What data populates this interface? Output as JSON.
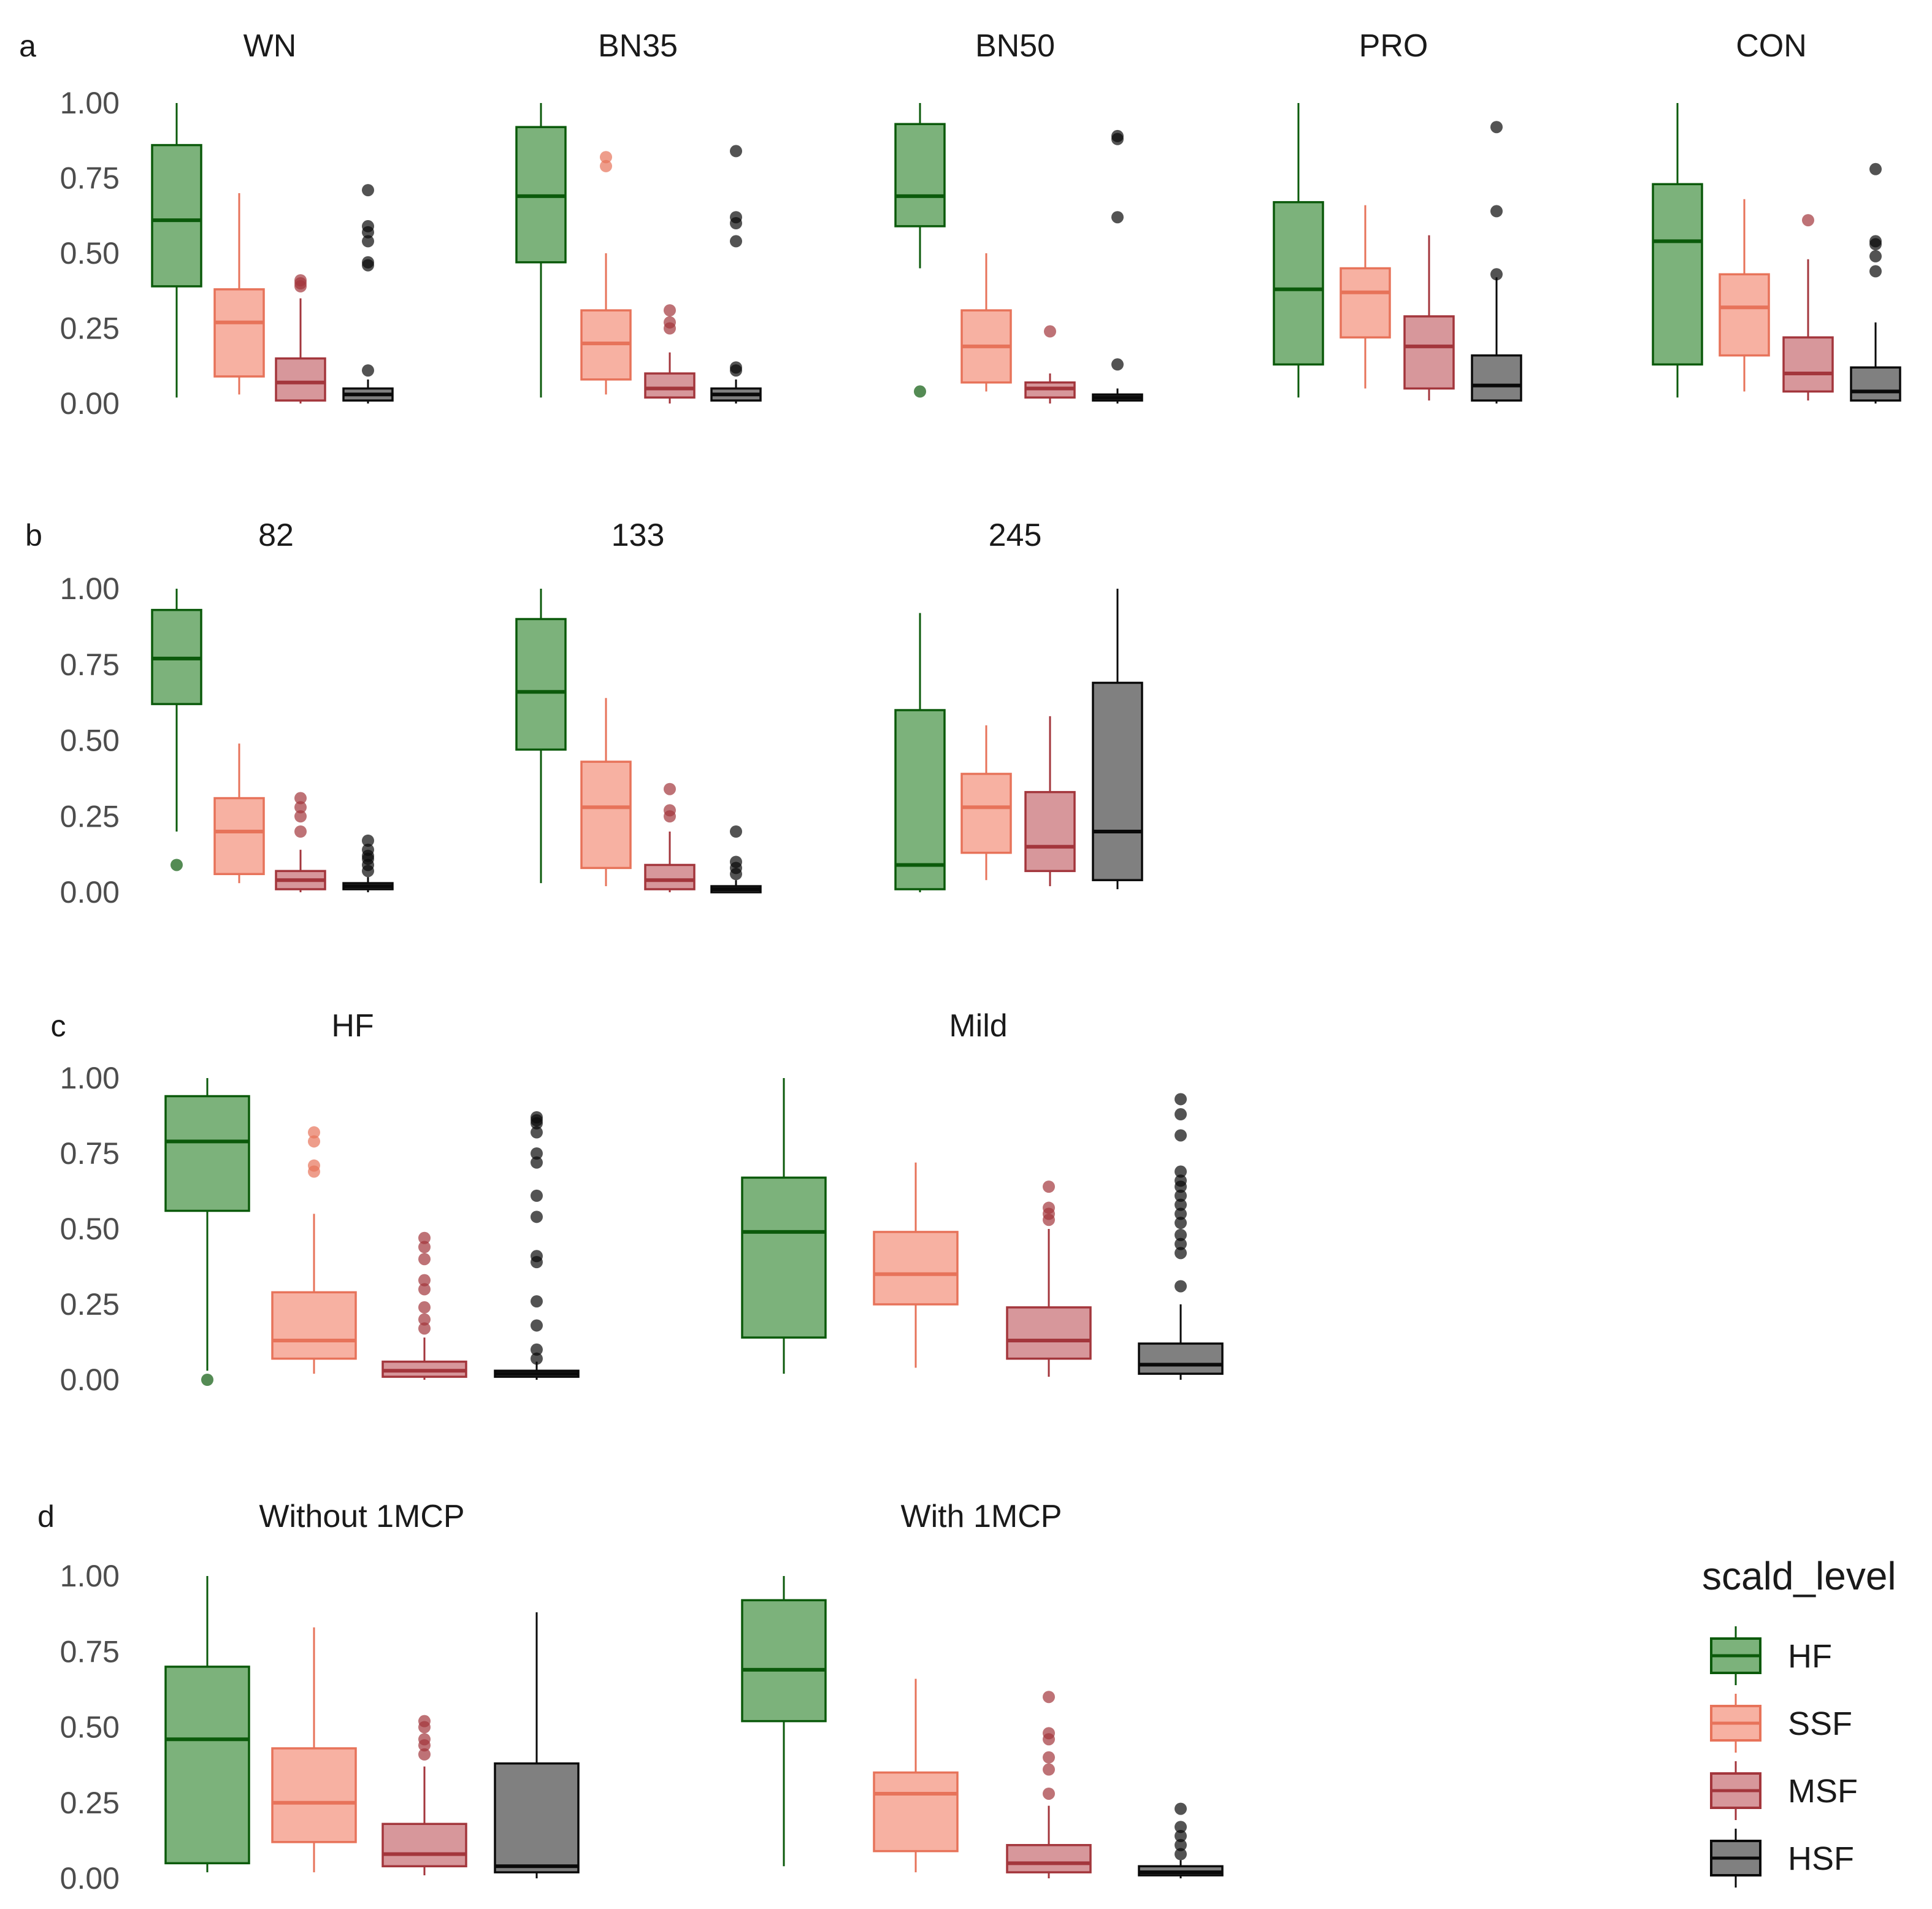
{
  "chart_data": {
    "type": "boxplot",
    "y_ticks": [
      "1.00",
      "0.75",
      "0.50",
      "0.25",
      "0.00"
    ],
    "ylim": [
      0,
      1
    ],
    "legend": {
      "title": "scald_level",
      "position": "bottom-right",
      "entries": [
        "HF",
        "SSF",
        "MSF",
        "HSF"
      ]
    },
    "colors": {
      "HF": {
        "fill": "#7cb27b",
        "line": "#0b5a0b"
      },
      "SSF": {
        "fill": "#f7b1a2",
        "line": "#e7735a"
      },
      "MSF": {
        "fill": "#d7979b",
        "line": "#a3363c"
      },
      "HSF": {
        "fill": "#808080",
        "line": "#0a0a0a"
      }
    },
    "rows": [
      {
        "label": "a",
        "panels": [
          {
            "title": "WN",
            "boxes": [
              {
                "group": "HF",
                "q1": 0.39,
                "median": 0.61,
                "q3": 0.86,
                "lo": 0.02,
                "hi": 1.0,
                "outliers": []
              },
              {
                "group": "SSF",
                "q1": 0.09,
                "median": 0.27,
                "q3": 0.38,
                "lo": 0.03,
                "hi": 0.7,
                "outliers": []
              },
              {
                "group": "MSF",
                "q1": 0.01,
                "median": 0.07,
                "q3": 0.15,
                "lo": 0.0,
                "hi": 0.35,
                "outliers": [
                  0.39,
                  0.4,
                  0.41
                ]
              },
              {
                "group": "HSF",
                "q1": 0.01,
                "median": 0.03,
                "q3": 0.05,
                "lo": 0.0,
                "hi": 0.08,
                "outliers": [
                  0.11,
                  0.46,
                  0.47,
                  0.54,
                  0.57,
                  0.59,
                  0.71
                ]
              }
            ]
          },
          {
            "title": "BN35",
            "boxes": [
              {
                "group": "HF",
                "q1": 0.47,
                "median": 0.69,
                "q3": 0.92,
                "lo": 0.02,
                "hi": 1.0,
                "outliers": []
              },
              {
                "group": "SSF",
                "q1": 0.08,
                "median": 0.2,
                "q3": 0.31,
                "lo": 0.03,
                "hi": 0.5,
                "outliers": [
                  0.79,
                  0.82
                ]
              },
              {
                "group": "MSF",
                "q1": 0.02,
                "median": 0.05,
                "q3": 0.1,
                "lo": 0.0,
                "hi": 0.17,
                "outliers": [
                  0.25,
                  0.27,
                  0.31
                ]
              },
              {
                "group": "HSF",
                "q1": 0.01,
                "median": 0.03,
                "q3": 0.05,
                "lo": 0.0,
                "hi": 0.08,
                "outliers": [
                  0.11,
                  0.12,
                  0.54,
                  0.6,
                  0.62,
                  0.84
                ]
              }
            ]
          },
          {
            "title": "BN50",
            "boxes": [
              {
                "group": "HF",
                "q1": 0.59,
                "median": 0.69,
                "q3": 0.93,
                "lo": 0.45,
                "hi": 1.0,
                "outliers": [
                  0.04
                ]
              },
              {
                "group": "SSF",
                "q1": 0.07,
                "median": 0.19,
                "q3": 0.31,
                "lo": 0.04,
                "hi": 0.5,
                "outliers": []
              },
              {
                "group": "MSF",
                "q1": 0.02,
                "median": 0.05,
                "q3": 0.07,
                "lo": 0.0,
                "hi": 0.1,
                "outliers": [
                  0.24
                ]
              },
              {
                "group": "HSF",
                "q1": 0.01,
                "median": 0.02,
                "q3": 0.03,
                "lo": 0.0,
                "hi": 0.05,
                "outliers": [
                  0.13,
                  0.62,
                  0.88,
                  0.89
                ]
              }
            ]
          },
          {
            "title": "PRO",
            "boxes": [
              {
                "group": "HF",
                "q1": 0.13,
                "median": 0.38,
                "q3": 0.67,
                "lo": 0.02,
                "hi": 1.0,
                "outliers": []
              },
              {
                "group": "SSF",
                "q1": 0.22,
                "median": 0.37,
                "q3": 0.45,
                "lo": 0.05,
                "hi": 0.66,
                "outliers": []
              },
              {
                "group": "MSF",
                "q1": 0.05,
                "median": 0.19,
                "q3": 0.29,
                "lo": 0.01,
                "hi": 0.56,
                "outliers": []
              },
              {
                "group": "HSF",
                "q1": 0.01,
                "median": 0.06,
                "q3": 0.16,
                "lo": 0.0,
                "hi": 0.42,
                "outliers": [
                  0.43,
                  0.64,
                  0.92
                ]
              }
            ]
          },
          {
            "title": "CON",
            "boxes": [
              {
                "group": "HF",
                "q1": 0.13,
                "median": 0.54,
                "q3": 0.73,
                "lo": 0.02,
                "hi": 1.0,
                "outliers": []
              },
              {
                "group": "SSF",
                "q1": 0.16,
                "median": 0.32,
                "q3": 0.43,
                "lo": 0.04,
                "hi": 0.68,
                "outliers": []
              },
              {
                "group": "MSF",
                "q1": 0.04,
                "median": 0.1,
                "q3": 0.22,
                "lo": 0.01,
                "hi": 0.48,
                "outliers": [
                  0.61
                ]
              },
              {
                "group": "HSF",
                "q1": 0.01,
                "median": 0.04,
                "q3": 0.12,
                "lo": 0.0,
                "hi": 0.27,
                "outliers": [
                  0.44,
                  0.49,
                  0.53,
                  0.54,
                  0.78
                ]
              }
            ]
          }
        ]
      },
      {
        "label": "b",
        "panels": [
          {
            "title": "82",
            "boxes": [
              {
                "group": "HF",
                "q1": 0.62,
                "median": 0.77,
                "q3": 0.93,
                "lo": 0.2,
                "hi": 1.0,
                "outliers": [
                  0.09
                ]
              },
              {
                "group": "SSF",
                "q1": 0.06,
                "median": 0.2,
                "q3": 0.31,
                "lo": 0.03,
                "hi": 0.49,
                "outliers": []
              },
              {
                "group": "MSF",
                "q1": 0.01,
                "median": 0.04,
                "q3": 0.07,
                "lo": 0.0,
                "hi": 0.14,
                "outliers": [
                  0.2,
                  0.25,
                  0.28,
                  0.31
                ]
              },
              {
                "group": "HSF",
                "q1": 0.01,
                "median": 0.02,
                "q3": 0.03,
                "lo": 0.0,
                "hi": 0.05,
                "outliers": [
                  0.07,
                  0.09,
                  0.11,
                  0.12,
                  0.14,
                  0.17
                ]
              }
            ]
          },
          {
            "title": "133",
            "boxes": [
              {
                "group": "HF",
                "q1": 0.47,
                "median": 0.66,
                "q3": 0.9,
                "lo": 0.03,
                "hi": 1.0,
                "outliers": []
              },
              {
                "group": "SSF",
                "q1": 0.08,
                "median": 0.28,
                "q3": 0.43,
                "lo": 0.02,
                "hi": 0.64,
                "outliers": []
              },
              {
                "group": "MSF",
                "q1": 0.01,
                "median": 0.04,
                "q3": 0.09,
                "lo": 0.0,
                "hi": 0.2,
                "outliers": [
                  0.25,
                  0.27,
                  0.34
                ]
              },
              {
                "group": "HSF",
                "q1": 0.0,
                "median": 0.01,
                "q3": 0.02,
                "lo": 0.0,
                "hi": 0.04,
                "outliers": [
                  0.06,
                  0.08,
                  0.1,
                  0.2
                ]
              }
            ]
          },
          {
            "title": "245",
            "boxes": [
              {
                "group": "HF",
                "q1": 0.01,
                "median": 0.09,
                "q3": 0.6,
                "lo": 0.0,
                "hi": 0.92,
                "outliers": []
              },
              {
                "group": "SSF",
                "q1": 0.13,
                "median": 0.28,
                "q3": 0.39,
                "lo": 0.04,
                "hi": 0.55,
                "outliers": []
              },
              {
                "group": "MSF",
                "q1": 0.07,
                "median": 0.15,
                "q3": 0.33,
                "lo": 0.02,
                "hi": 0.58,
                "outliers": []
              },
              {
                "group": "HSF",
                "q1": 0.04,
                "median": 0.2,
                "q3": 0.69,
                "lo": 0.01,
                "hi": 1.0,
                "outliers": []
              }
            ]
          }
        ]
      },
      {
        "label": "c",
        "panels": [
          {
            "title": "HF",
            "boxes": [
              {
                "group": "HF",
                "q1": 0.56,
                "median": 0.79,
                "q3": 0.94,
                "lo": 0.03,
                "hi": 1.0,
                "outliers": [
                  0.0
                ]
              },
              {
                "group": "SSF",
                "q1": 0.07,
                "median": 0.13,
                "q3": 0.29,
                "lo": 0.02,
                "hi": 0.55,
                "outliers": [
                  0.69,
                  0.71,
                  0.79,
                  0.82
                ]
              },
              {
                "group": "MSF",
                "q1": 0.01,
                "median": 0.03,
                "q3": 0.06,
                "lo": 0.0,
                "hi": 0.14,
                "outliers": [
                  0.17,
                  0.2,
                  0.24,
                  0.3,
                  0.33,
                  0.4,
                  0.44,
                  0.47
                ]
              },
              {
                "group": "HSF",
                "q1": 0.01,
                "median": 0.02,
                "q3": 0.03,
                "lo": 0.0,
                "hi": 0.06,
                "outliers": [
                  0.07,
                  0.1,
                  0.18,
                  0.26,
                  0.39,
                  0.41,
                  0.54,
                  0.61,
                  0.72,
                  0.75,
                  0.82,
                  0.85,
                  0.86,
                  0.87
                ]
              }
            ]
          },
          {
            "title": "Mild",
            "boxes": [
              {
                "group": "HF",
                "q1": 0.14,
                "median": 0.49,
                "q3": 0.67,
                "lo": 0.02,
                "hi": 1.0,
                "outliers": []
              },
              {
                "group": "SSF",
                "q1": 0.25,
                "median": 0.35,
                "q3": 0.49,
                "lo": 0.04,
                "hi": 0.72,
                "outliers": []
              },
              {
                "group": "MSF",
                "q1": 0.07,
                "median": 0.13,
                "q3": 0.24,
                "lo": 0.01,
                "hi": 0.5,
                "outliers": [
                  0.53,
                  0.55,
                  0.57,
                  0.64
                ]
              },
              {
                "group": "HSF",
                "q1": 0.02,
                "median": 0.05,
                "q3": 0.12,
                "lo": 0.0,
                "hi": 0.25,
                "outliers": [
                  0.31,
                  0.42,
                  0.45,
                  0.48,
                  0.52,
                  0.55,
                  0.58,
                  0.61,
                  0.64,
                  0.66,
                  0.69,
                  0.81,
                  0.88,
                  0.93
                ]
              }
            ]
          }
        ]
      },
      {
        "label": "d",
        "panels": [
          {
            "title": "Without 1MCP",
            "boxes": [
              {
                "group": "HF",
                "q1": 0.05,
                "median": 0.46,
                "q3": 0.7,
                "lo": 0.02,
                "hi": 1.0,
                "outliers": []
              },
              {
                "group": "SSF",
                "q1": 0.12,
                "median": 0.25,
                "q3": 0.43,
                "lo": 0.02,
                "hi": 0.83,
                "outliers": []
              },
              {
                "group": "MSF",
                "q1": 0.04,
                "median": 0.08,
                "q3": 0.18,
                "lo": 0.01,
                "hi": 0.37,
                "outliers": [
                  0.41,
                  0.44,
                  0.46,
                  0.5,
                  0.52
                ]
              },
              {
                "group": "HSF",
                "q1": 0.02,
                "median": 0.04,
                "q3": 0.38,
                "lo": 0.0,
                "hi": 0.88,
                "outliers": []
              }
            ]
          },
          {
            "title": "With 1MCP",
            "boxes": [
              {
                "group": "HF",
                "q1": 0.52,
                "median": 0.69,
                "q3": 0.92,
                "lo": 0.04,
                "hi": 1.0,
                "outliers": []
              },
              {
                "group": "SSF",
                "q1": 0.09,
                "median": 0.28,
                "q3": 0.35,
                "lo": 0.02,
                "hi": 0.66,
                "outliers": []
              },
              {
                "group": "MSF",
                "q1": 0.02,
                "median": 0.05,
                "q3": 0.11,
                "lo": 0.0,
                "hi": 0.24,
                "outliers": [
                  0.28,
                  0.36,
                  0.4,
                  0.46,
                  0.48,
                  0.6
                ]
              },
              {
                "group": "HSF",
                "q1": 0.01,
                "median": 0.02,
                "q3": 0.04,
                "lo": 0.0,
                "hi": 0.06,
                "outliers": [
                  0.08,
                  0.11,
                  0.14,
                  0.17,
                  0.23
                ]
              }
            ]
          }
        ]
      }
    ]
  }
}
